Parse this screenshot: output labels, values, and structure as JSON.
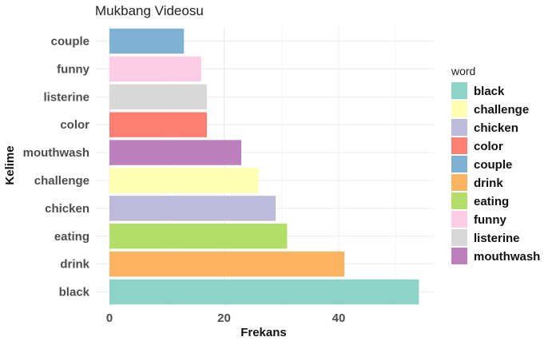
{
  "chart_data": {
    "type": "bar",
    "orientation": "horizontal",
    "title": "Mukbang Videosu",
    "xlabel": "Frekans",
    "ylabel": "Kelime",
    "categories": [
      "black",
      "drink",
      "eating",
      "chicken",
      "challenge",
      "mouthwash",
      "color",
      "listerine",
      "funny",
      "couple"
    ],
    "values": [
      54,
      41,
      31,
      29,
      26,
      23,
      17,
      17,
      16,
      13
    ],
    "xlim": [
      0,
      57
    ],
    "xticks": [
      0,
      20,
      40
    ],
    "grid": true,
    "legend": {
      "title": "word",
      "position": "right",
      "items": [
        "black",
        "challenge",
        "chicken",
        "color",
        "couple",
        "drink",
        "eating",
        "funny",
        "listerine",
        "mouthwash"
      ]
    },
    "colors": {
      "black": "#8dd3c7",
      "challenge": "#ffffb3",
      "chicken": "#bebada",
      "color": "#fb8072",
      "couple": "#80b1d3",
      "drink": "#fdb462",
      "eating": "#b3de69",
      "funny": "#fccde5",
      "listerine": "#d9d9d9",
      "mouthwash": "#bc80bd"
    }
  }
}
